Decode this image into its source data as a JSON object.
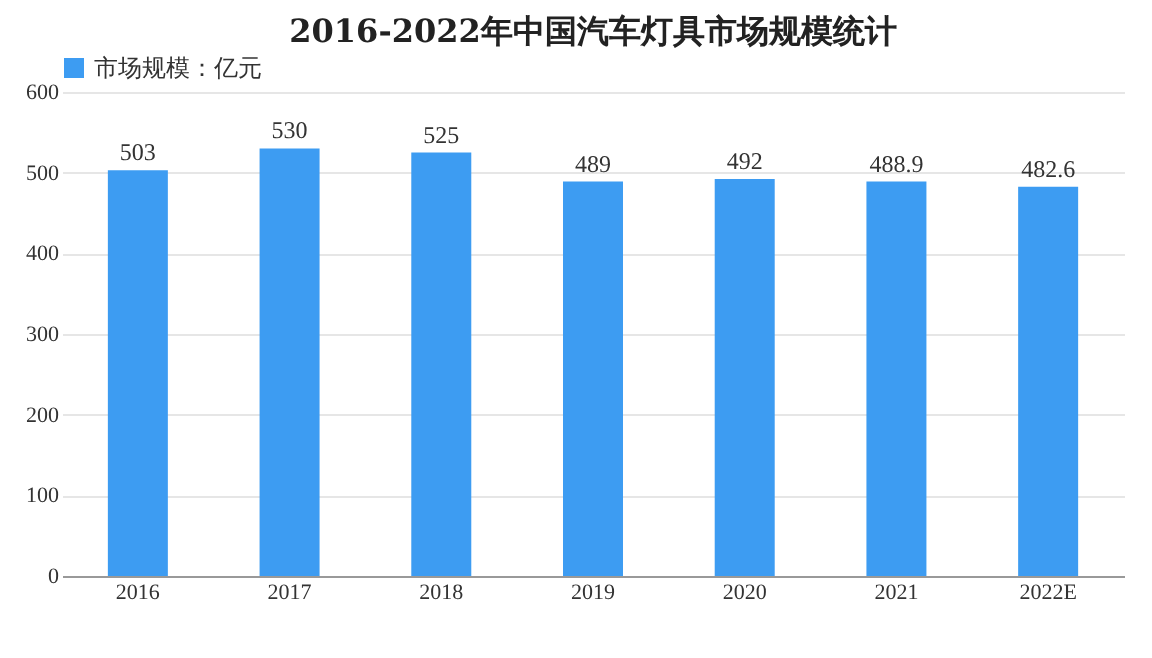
{
  "chart_data": {
    "type": "bar",
    "title": "2016-2022年中国汽车灯具市场规模统计",
    "categories": [
      "2016",
      "2017",
      "2018",
      "2019",
      "2020",
      "2021",
      "2022E"
    ],
    "series": [
      {
        "name": "市场规模：亿元",
        "color": "#3d9cf2",
        "values": [
          503,
          530,
          525,
          489,
          492,
          488.9,
          482.6
        ]
      }
    ],
    "ylim": [
      0,
      600
    ],
    "yticks": [
      0,
      100,
      200,
      300,
      400,
      500,
      600
    ],
    "grid": "y",
    "legend": "top",
    "data_labels": true
  }
}
